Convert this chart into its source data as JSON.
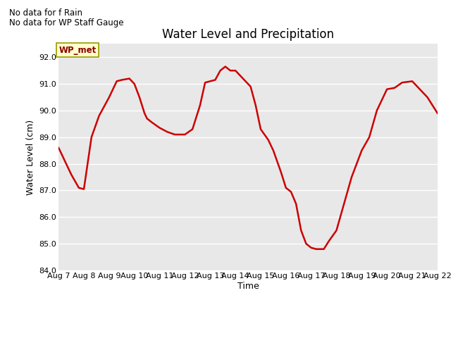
{
  "title": "Water Level and Precipitation",
  "xlabel": "Time",
  "ylabel": "Water Level (cm)",
  "ylim": [
    84.0,
    92.5
  ],
  "xlim": [
    0,
    15
  ],
  "line_color": "#cc0000",
  "line_width": 1.8,
  "bg_color": "#e8e8e8",
  "fig_color": "#ffffff",
  "legend_line_color": "#cc0000",
  "annotation_text1": "No data for f Rain",
  "annotation_text2": "No data for WP Staff Gauge",
  "box_label": "WP_met",
  "x_tick_labels": [
    "Aug 7",
    "Aug 8",
    "Aug 9",
    "Aug 10",
    "Aug 11",
    "Aug 12",
    "Aug 13",
    "Aug 14",
    "Aug 15",
    "Aug 16",
    "Aug 17",
    "Aug 18",
    "Aug 19",
    "Aug 20",
    "Aug 21",
    "Aug 22"
  ],
  "y_ticks": [
    84.0,
    85.0,
    86.0,
    87.0,
    88.0,
    89.0,
    90.0,
    91.0,
    92.0
  ],
  "x_values": [
    0,
    0.2,
    0.5,
    0.8,
    1.0,
    1.3,
    1.6,
    2.0,
    2.3,
    2.5,
    2.8,
    3.0,
    3.2,
    3.4,
    3.5,
    3.7,
    4.0,
    4.3,
    4.6,
    5.0,
    5.3,
    5.6,
    5.8,
    6.0,
    6.2,
    6.4,
    6.6,
    6.8,
    7.0,
    7.2,
    7.4,
    7.6,
    7.8,
    8.0,
    8.3,
    8.5,
    8.8,
    9.0,
    9.2,
    9.4,
    9.6,
    9.8,
    10.0,
    10.2,
    10.5,
    10.7,
    11.0,
    11.3,
    11.6,
    12.0,
    12.3,
    12.6,
    13.0,
    13.3,
    13.6,
    14.0,
    14.3,
    14.6,
    15.0
  ],
  "y_values": [
    88.6,
    88.2,
    87.6,
    87.1,
    87.05,
    89.0,
    89.8,
    90.5,
    91.1,
    91.15,
    91.2,
    91.0,
    90.5,
    89.9,
    89.7,
    89.55,
    89.35,
    89.2,
    89.1,
    89.1,
    89.3,
    90.2,
    91.05,
    91.1,
    91.15,
    91.5,
    91.65,
    91.5,
    91.5,
    91.3,
    91.1,
    90.9,
    90.2,
    89.3,
    88.9,
    88.5,
    87.7,
    87.1,
    86.95,
    86.5,
    85.5,
    85.0,
    84.85,
    84.8,
    84.8,
    85.1,
    85.5,
    86.5,
    87.5,
    88.5,
    89.0,
    90.0,
    90.8,
    90.85,
    91.05,
    91.1,
    90.8,
    90.5,
    89.9
  ],
  "title_fontsize": 12,
  "axis_fontsize": 9,
  "tick_fontsize": 8
}
